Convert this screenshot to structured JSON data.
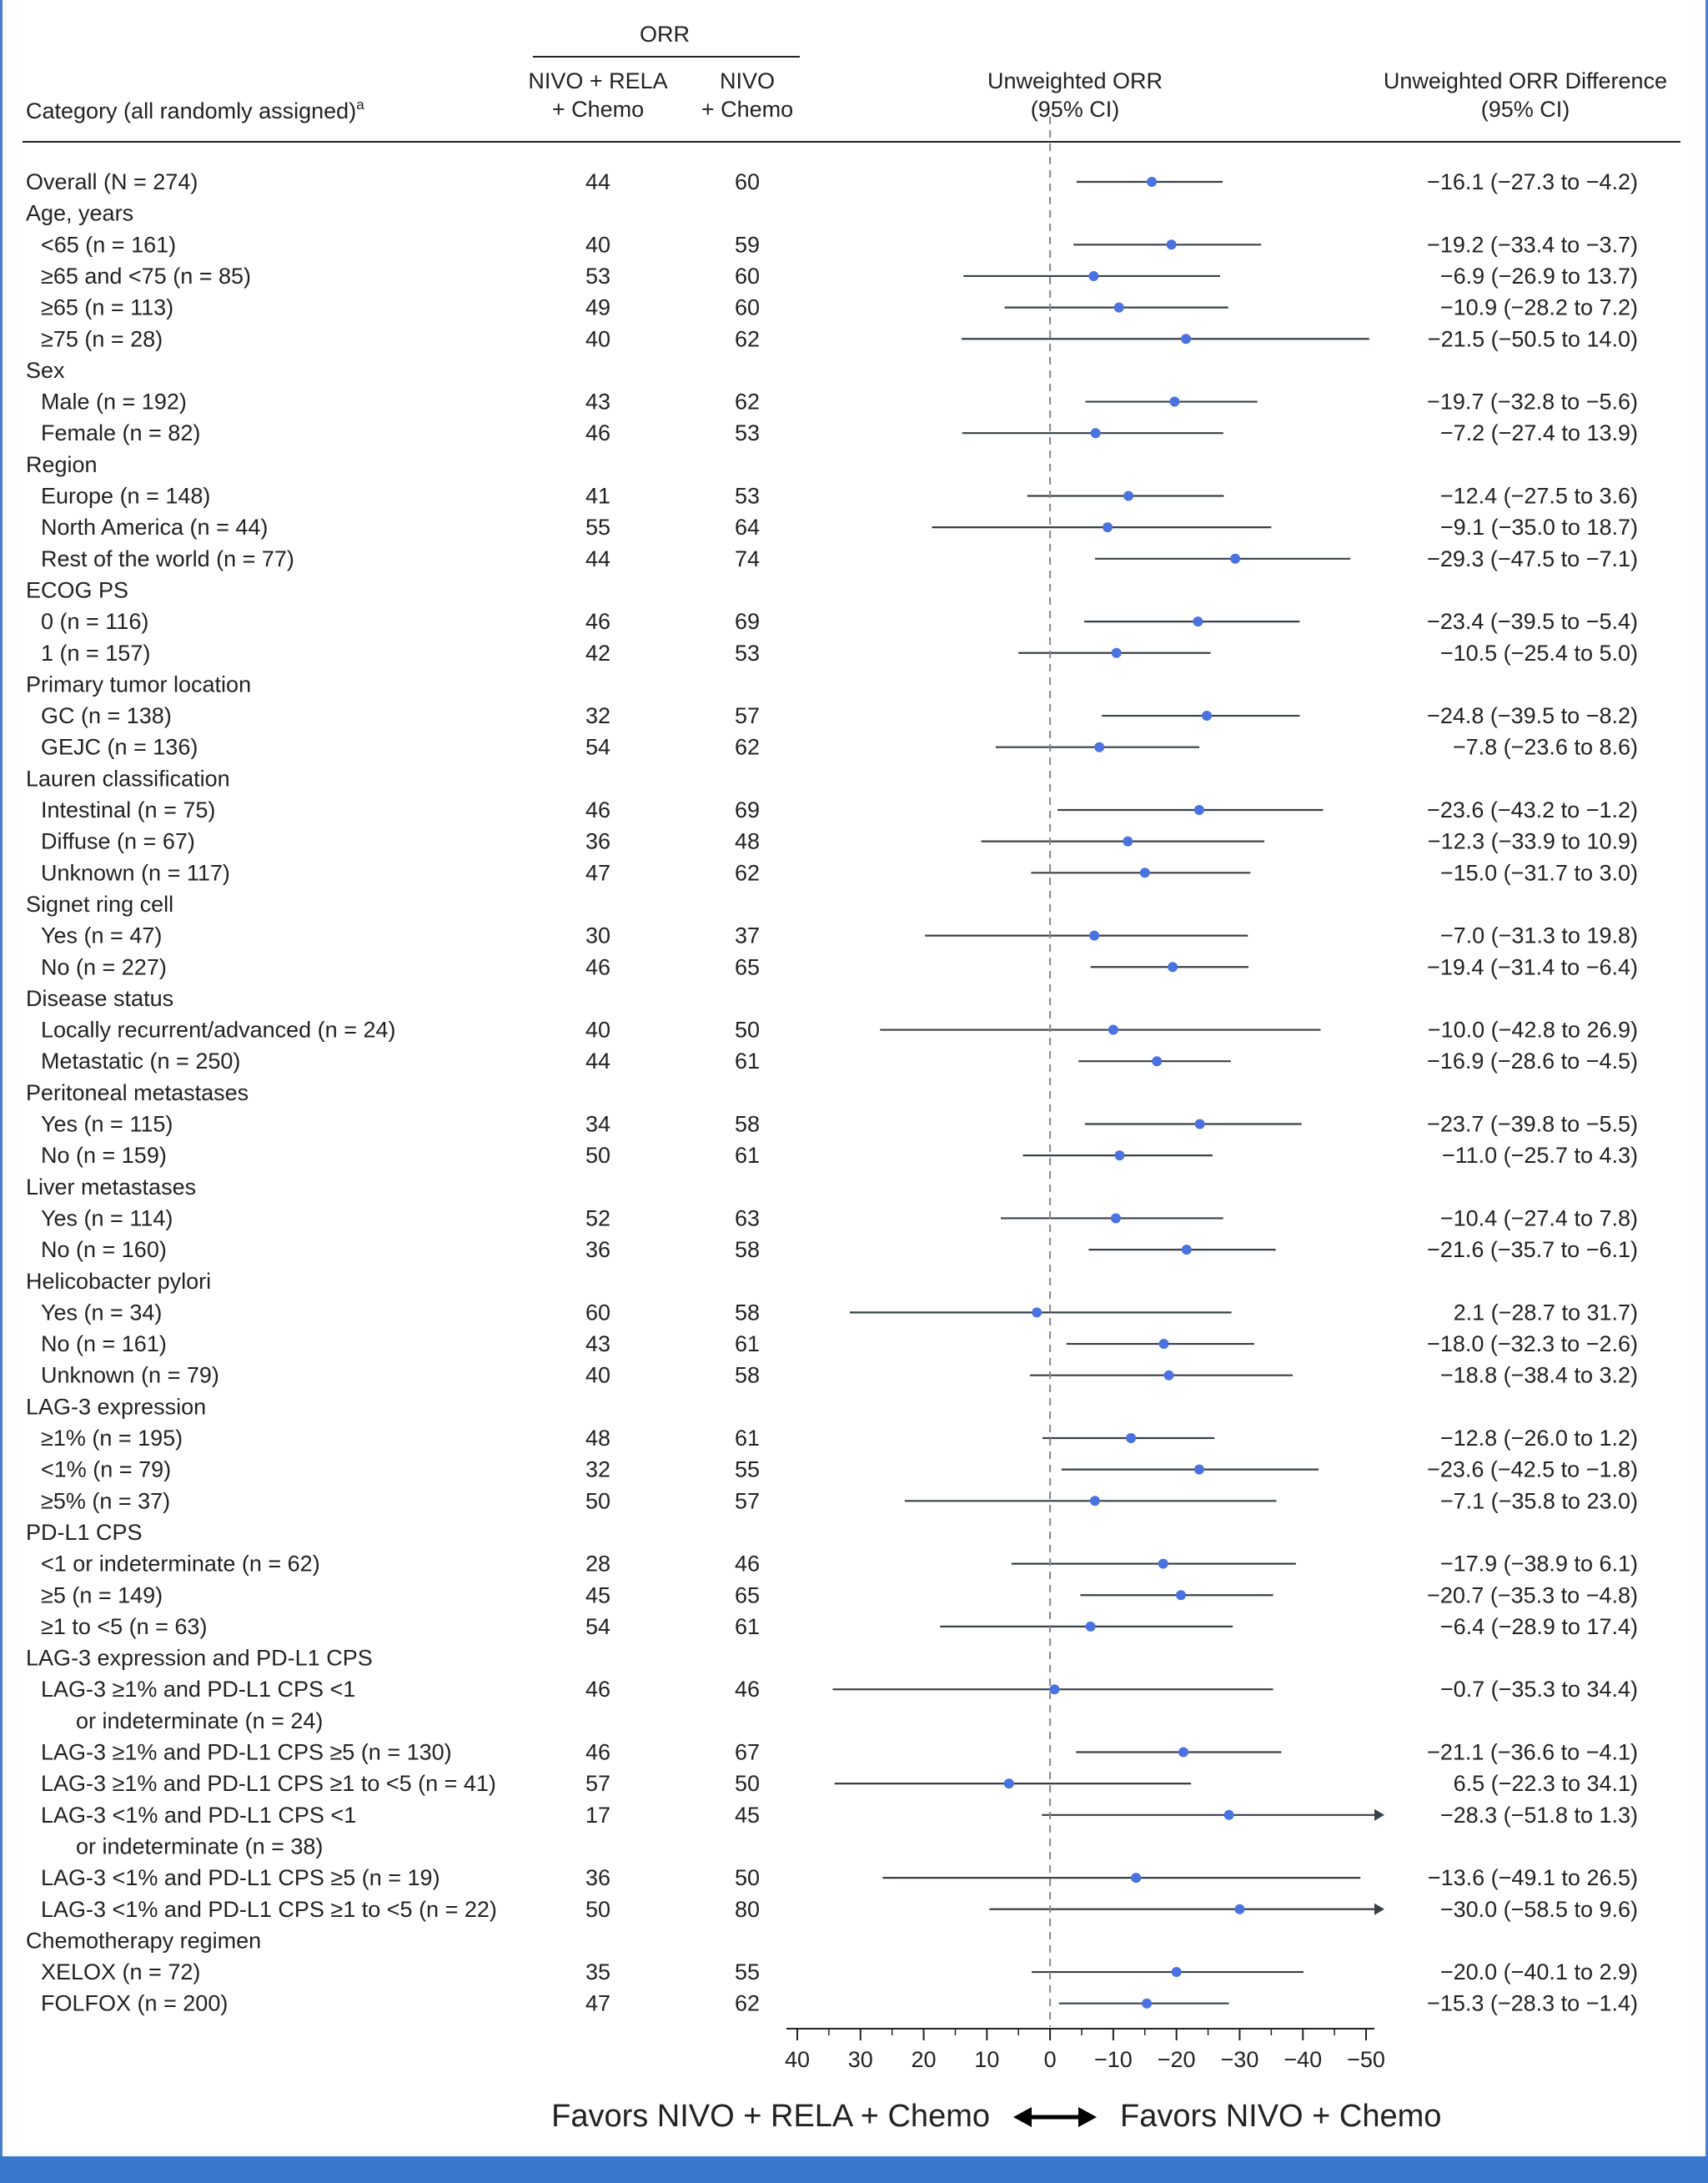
{
  "chart_data": {
    "type": "forest",
    "header": {
      "orr_group": "ORR",
      "category": "Category (all randomly assigned)",
      "category_sup": "a",
      "col1_line1": "NIVO + RELA",
      "col1_line2": "+ Chemo",
      "col2_line1": "NIVO",
      "col2_line2": "+ Chemo",
      "plot_line1": "Unweighted ORR",
      "plot_line2": "(95% CI)",
      "diff_line1": "Unweighted ORR Difference",
      "diff_line2": "(95% CI)"
    },
    "xlim": [
      40,
      -50
    ],
    "xticks": [
      "40",
      "30",
      "20",
      "10",
      "0",
      "−10",
      "−20",
      "−30",
      "−40",
      "−50"
    ],
    "tick_values": [
      40,
      30,
      20,
      10,
      0,
      -10,
      -20,
      -30,
      -40,
      -50
    ],
    "favors_left": "Favors NIVO + RELA + Chemo",
    "favors_right": "Favors NIVO + Chemo",
    "rows": [
      {
        "label": "Overall (N = 274)",
        "a": "44",
        "b": "60",
        "text": "−16.1 (−27.3 to −4.2)",
        "est": -16.1,
        "lo": -27.3,
        "hi": -4.2,
        "indent": 0
      },
      {
        "label": "Age, years",
        "header": true
      },
      {
        "label": "<65 (n = 161)",
        "a": "40",
        "b": "59",
        "text": "−19.2 (−33.4 to −3.7)",
        "est": -19.2,
        "lo": -33.4,
        "hi": -3.7,
        "indent": 1
      },
      {
        "label": "≥65 and <75 (n = 85)",
        "a": "53",
        "b": "60",
        "text": "−6.9 (−26.9 to 13.7)",
        "est": -6.9,
        "lo": -26.9,
        "hi": 13.7,
        "indent": 1
      },
      {
        "label": "≥65 (n = 113)",
        "a": "49",
        "b": "60",
        "text": "−10.9 (−28.2 to 7.2)",
        "est": -10.9,
        "lo": -28.2,
        "hi": 7.2,
        "indent": 1
      },
      {
        "label": "≥75 (n = 28)",
        "a": "40",
        "b": "62",
        "text": "−21.5 (−50.5 to 14.0)",
        "est": -21.5,
        "lo": -50.5,
        "hi": 14.0,
        "indent": 1
      },
      {
        "label": "Sex",
        "header": true
      },
      {
        "label": "Male (n = 192)",
        "a": "43",
        "b": "62",
        "text": "−19.7 (−32.8 to −5.6)",
        "est": -19.7,
        "lo": -32.8,
        "hi": -5.6,
        "indent": 1
      },
      {
        "label": "Female (n = 82)",
        "a": "46",
        "b": "53",
        "text": "−7.2 (−27.4 to 13.9)",
        "est": -7.2,
        "lo": -27.4,
        "hi": 13.9,
        "indent": 1
      },
      {
        "label": "Region",
        "header": true
      },
      {
        "label": "Europe (n = 148)",
        "a": "41",
        "b": "53",
        "text": "−12.4 (−27.5 to 3.6)",
        "est": -12.4,
        "lo": -27.5,
        "hi": 3.6,
        "indent": 1
      },
      {
        "label": "North America (n = 44)",
        "a": "55",
        "b": "64",
        "text": "−9.1 (−35.0 to 18.7)",
        "est": -9.1,
        "lo": -35.0,
        "hi": 18.7,
        "indent": 1
      },
      {
        "label": "Rest of the world (n = 77)",
        "a": "44",
        "b": "74",
        "text": "−29.3 (−47.5 to −7.1)",
        "est": -29.3,
        "lo": -47.5,
        "hi": -7.1,
        "indent": 1
      },
      {
        "label": "ECOG PS",
        "header": true
      },
      {
        "label": "0 (n = 116)",
        "a": "46",
        "b": "69",
        "text": "−23.4 (−39.5 to −5.4)",
        "est": -23.4,
        "lo": -39.5,
        "hi": -5.4,
        "indent": 1
      },
      {
        "label": "1 (n = 157)",
        "a": "42",
        "b": "53",
        "text": "−10.5 (−25.4 to 5.0)",
        "est": -10.5,
        "lo": -25.4,
        "hi": 5.0,
        "indent": 1
      },
      {
        "label": "Primary tumor location",
        "header": true
      },
      {
        "label": "GC (n = 138)",
        "a": "32",
        "b": "57",
        "text": "−24.8 (−39.5 to −8.2)",
        "est": -24.8,
        "lo": -39.5,
        "hi": -8.2,
        "indent": 1
      },
      {
        "label": "GEJC (n = 136)",
        "a": "54",
        "b": "62",
        "text": "−7.8 (−23.6 to 8.6)",
        "est": -7.8,
        "lo": -23.6,
        "hi": 8.6,
        "indent": 1
      },
      {
        "label": "Lauren classification",
        "header": true
      },
      {
        "label": "Intestinal (n = 75)",
        "a": "46",
        "b": "69",
        "text": "−23.6 (−43.2 to −1.2)",
        "est": -23.6,
        "lo": -43.2,
        "hi": -1.2,
        "indent": 1
      },
      {
        "label": "Diffuse (n = 67)",
        "a": "36",
        "b": "48",
        "text": "−12.3 (−33.9 to 10.9)",
        "est": -12.3,
        "lo": -33.9,
        "hi": 10.9,
        "indent": 1
      },
      {
        "label": "Unknown (n = 117)",
        "a": "47",
        "b": "62",
        "text": "−15.0 (−31.7 to 3.0)",
        "est": -15.0,
        "lo": -31.7,
        "hi": 3.0,
        "indent": 1
      },
      {
        "label": "Signet ring cell",
        "header": true
      },
      {
        "label": "Yes (n = 47)",
        "a": "30",
        "b": "37",
        "text": "−7.0 (−31.3 to 19.8)",
        "est": -7.0,
        "lo": -31.3,
        "hi": 19.8,
        "indent": 1
      },
      {
        "label": "No (n = 227)",
        "a": "46",
        "b": "65",
        "text": "−19.4 (−31.4 to −6.4)",
        "est": -19.4,
        "lo": -31.4,
        "hi": -6.4,
        "indent": 1
      },
      {
        "label": "Disease status",
        "header": true
      },
      {
        "label": "Locally recurrent/advanced (n = 24)",
        "a": "40",
        "b": "50",
        "text": "−10.0 (−42.8 to 26.9)",
        "est": -10.0,
        "lo": -42.8,
        "hi": 26.9,
        "indent": 1
      },
      {
        "label": "Metastatic (n = 250)",
        "a": "44",
        "b": "61",
        "text": "−16.9 (−28.6 to −4.5)",
        "est": -16.9,
        "lo": -28.6,
        "hi": -4.5,
        "indent": 1
      },
      {
        "label": "Peritoneal metastases",
        "header": true
      },
      {
        "label": "Yes (n = 115)",
        "a": "34",
        "b": "58",
        "text": "−23.7 (−39.8 to −5.5)",
        "est": -23.7,
        "lo": -39.8,
        "hi": -5.5,
        "indent": 1
      },
      {
        "label": "No (n = 159)",
        "a": "50",
        "b": "61",
        "text": "−11.0 (−25.7 to 4.3)",
        "est": -11.0,
        "lo": -25.7,
        "hi": 4.3,
        "indent": 1
      },
      {
        "label": "Liver metastases",
        "header": true
      },
      {
        "label": "Yes (n = 114)",
        "a": "52",
        "b": "63",
        "text": "−10.4 (−27.4 to 7.8)",
        "est": -10.4,
        "lo": -27.4,
        "hi": 7.8,
        "indent": 1
      },
      {
        "label": "No (n = 160)",
        "a": "36",
        "b": "58",
        "text": "−21.6 (−35.7 to −6.1)",
        "est": -21.6,
        "lo": -35.7,
        "hi": -6.1,
        "indent": 1
      },
      {
        "label": "Helicobacter pylori",
        "header": true
      },
      {
        "label": "Yes (n = 34)",
        "a": "60",
        "b": "58",
        "text": "2.1 (−28.7 to 31.7)",
        "est": 2.1,
        "lo": -28.7,
        "hi": 31.7,
        "indent": 1
      },
      {
        "label": "No (n = 161)",
        "a": "43",
        "b": "61",
        "text": "−18.0 (−32.3 to −2.6)",
        "est": -18.0,
        "lo": -32.3,
        "hi": -2.6,
        "indent": 1
      },
      {
        "label": "Unknown (n = 79)",
        "a": "40",
        "b": "58",
        "text": "−18.8 (−38.4 to 3.2)",
        "est": -18.8,
        "lo": -38.4,
        "hi": 3.2,
        "indent": 1
      },
      {
        "label": "LAG-3 expression",
        "header": true
      },
      {
        "label": "≥1% (n = 195)",
        "a": "48",
        "b": "61",
        "text": "−12.8 (−26.0 to 1.2)",
        "est": -12.8,
        "lo": -26.0,
        "hi": 1.2,
        "indent": 1
      },
      {
        "label": "<1% (n = 79)",
        "a": "32",
        "b": "55",
        "text": "−23.6 (−42.5 to −1.8)",
        "est": -23.6,
        "lo": -42.5,
        "hi": -1.8,
        "indent": 1
      },
      {
        "label": "≥5% (n = 37)",
        "a": "50",
        "b": "57",
        "text": "−7.1 (−35.8 to 23.0)",
        "est": -7.1,
        "lo": -35.8,
        "hi": 23.0,
        "indent": 1
      },
      {
        "label": "PD-L1 CPS",
        "header": true
      },
      {
        "label": "<1 or indeterminate (n = 62)",
        "a": "28",
        "b": "46",
        "text": "−17.9 (−38.9 to 6.1)",
        "est": -17.9,
        "lo": -38.9,
        "hi": 6.1,
        "indent": 1
      },
      {
        "label": "≥5 (n = 149)",
        "a": "45",
        "b": "65",
        "text": "−20.7 (−35.3 to −4.8)",
        "est": -20.7,
        "lo": -35.3,
        "hi": -4.8,
        "indent": 1
      },
      {
        "label": "≥1 to <5 (n = 63)",
        "a": "54",
        "b": "61",
        "text": "−6.4 (−28.9 to 17.4)",
        "est": -6.4,
        "lo": -28.9,
        "hi": 17.4,
        "indent": 1
      },
      {
        "label": "LAG-3 expression and PD-L1 CPS",
        "header": true
      },
      {
        "label": "LAG-3 ≥1% and PD-L1 CPS <1",
        "label2": "or indeterminate (n = 24)",
        "a": "46",
        "b": "46",
        "text": "−0.7 (−35.3 to 34.4)",
        "est": -0.7,
        "lo": -35.3,
        "hi": 34.4,
        "indent": 1
      },
      {
        "label": "LAG-3 ≥1% and PD-L1 CPS ≥5 (n = 130)",
        "a": "46",
        "b": "67",
        "text": "−21.1 (−36.6 to −4.1)",
        "est": -21.1,
        "lo": -36.6,
        "hi": -4.1,
        "indent": 1
      },
      {
        "label": "LAG-3 ≥1% and PD-L1 CPS ≥1 to <5 (n = 41)",
        "a": "57",
        "b": "50",
        "text": "6.5 (−22.3 to 34.1)",
        "est": 6.5,
        "lo": -22.3,
        "hi": 34.1,
        "indent": 1
      },
      {
        "label": "LAG-3 <1% and PD-L1 CPS <1",
        "label2": "or indeterminate (n = 38)",
        "a": "17",
        "b": "45",
        "text": "−28.3 (−51.8 to 1.3)",
        "est": -28.3,
        "lo": -51.8,
        "hi": 1.3,
        "indent": 1,
        "arrow_right": true
      },
      {
        "label": "LAG-3 <1% and PD-L1 CPS ≥5 (n = 19)",
        "a": "36",
        "b": "50",
        "text": "−13.6 (−49.1 to 26.5)",
        "est": -13.6,
        "lo": -49.1,
        "hi": 26.5,
        "indent": 1
      },
      {
        "label": "LAG-3 <1% and PD-L1 CPS ≥1 to <5 (n = 22)",
        "a": "50",
        "b": "80",
        "text": "−30.0 (−58.5 to 9.6)",
        "est": -30.0,
        "lo": -58.5,
        "hi": 9.6,
        "indent": 1,
        "arrow_right": true
      },
      {
        "label": "Chemotherapy regimen",
        "header": true
      },
      {
        "label": "XELOX (n = 72)",
        "a": "35",
        "b": "55",
        "text": "−20.0 (−40.1 to 2.9)",
        "est": -20.0,
        "lo": -40.1,
        "hi": 2.9,
        "indent": 1
      },
      {
        "label": "FOLFOX (n = 200)",
        "a": "47",
        "b": "62",
        "text": "−15.3 (−28.3 to −1.4)",
        "est": -15.3,
        "lo": -28.3,
        "hi": -1.4,
        "indent": 1
      }
    ]
  },
  "colors": {
    "point": "#4a72e0",
    "line": "#3a4048",
    "text": "#222222",
    "reference": "#888888",
    "frame": "#4a80c8",
    "band": "#3a78d0"
  }
}
